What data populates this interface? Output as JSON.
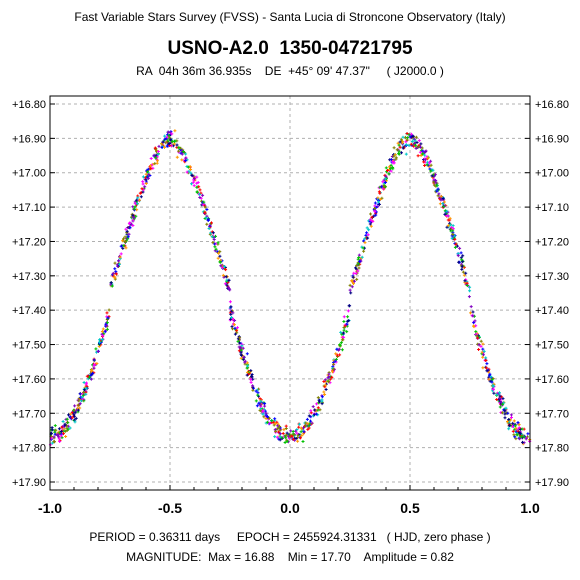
{
  "header": {
    "survey": "Fast Variable Stars Survey (FVSS) - Santa Lucia di Stroncone Observatory (Italy)",
    "star_name": "USNO-A2.0  1350-04721795",
    "coordinates": "RA  04h 36m 36.935s    DE  +45° 09' 47.37\"     ( J2000.0 )"
  },
  "footer": {
    "period_line": "PERIOD = 0.36311 days     EPOCH = 2455924.31331   ( HJD, zero phase )",
    "magnitude_line": "MAGNITUDE:  Max = 16.88    Min = 17.70    Amplitude = 0.82"
  },
  "chart_data": {
    "type": "scatter",
    "x_range": [
      -1.0,
      1.0
    ],
    "y_range": [
      16.8,
      17.9
    ],
    "y_inverted": true,
    "x_ticks": [
      "-1.0",
      "-0.5",
      "0.0",
      "0.5",
      "1.0"
    ],
    "y_ticks": [
      "+16.80",
      "+16.90",
      "+17.00",
      "+17.10",
      "+17.20",
      "+17.30",
      "+17.40",
      "+17.50",
      "+17.60",
      "+17.70",
      "+17.80",
      "+17.90"
    ],
    "grid": true,
    "point_colors": [
      "#ff0000",
      "#00c000",
      "#0000ff",
      "#ff00ff",
      "#00c8c8",
      "#ff9900",
      "#000080",
      "#808000",
      "#8000c0"
    ],
    "light_curve": {
      "period_days": 0.36311,
      "max_magnitude": 16.88,
      "min_magnitude": 17.7,
      "amplitude": 0.82,
      "primary_minimum_phase": 0.0,
      "secondary_minimum_phase": 0.5
    }
  }
}
